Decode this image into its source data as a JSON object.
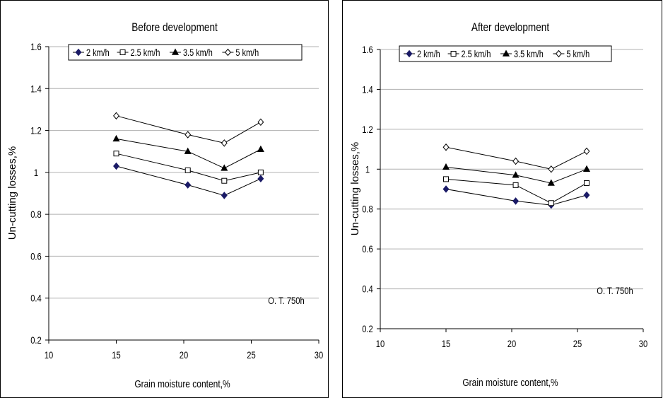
{
  "chart_data": [
    {
      "type": "line",
      "title": "Before development",
      "xlabel": "Grain moisture content,%",
      "ylabel": "Un-cutting losses,%",
      "annotation": "O. T. 750h",
      "xlim": [
        10,
        30
      ],
      "ylim": [
        0.2,
        1.6
      ],
      "xticks": [
        "10",
        "15",
        "20",
        "25",
        "30"
      ],
      "yticks": [
        "0.2",
        "0.4",
        "0.6",
        "0.8",
        "1",
        "1.2",
        "1.4",
        "1.6"
      ],
      "grid": "horizontal",
      "legend_position": "top",
      "x": [
        15,
        20.3,
        23,
        25.7
      ],
      "series": [
        {
          "name": "2 km/h",
          "marker": "filled-diamond",
          "values": [
            1.03,
            0.94,
            0.89,
            0.97
          ]
        },
        {
          "name": "2.5 km/h",
          "marker": "open-square",
          "values": [
            1.09,
            1.01,
            0.96,
            1.0
          ]
        },
        {
          "name": "3.5 km/h",
          "marker": "filled-triangle",
          "values": [
            1.16,
            1.1,
            1.02,
            1.11
          ]
        },
        {
          "name": "5 km/h",
          "marker": "open-diamond",
          "values": [
            1.27,
            1.18,
            1.14,
            1.24
          ]
        }
      ]
    },
    {
      "type": "line",
      "title": "After development",
      "xlabel": "Grain moisture content,%",
      "ylabel": "Un-cutting losses,%",
      "annotation": "O. T. 750h",
      "xlim": [
        10,
        30
      ],
      "ylim": [
        0.2,
        1.6
      ],
      "xticks": [
        "10",
        "15",
        "20",
        "25",
        "30"
      ],
      "yticks": [
        "0.2",
        "0.4",
        "0.6",
        "0.8",
        "1",
        "1.2",
        "1.4",
        "1.6"
      ],
      "grid": "horizontal",
      "legend_position": "top",
      "x": [
        15,
        20.3,
        23,
        25.7
      ],
      "series": [
        {
          "name": "2 km/h",
          "marker": "filled-diamond",
          "values": [
            0.9,
            0.84,
            0.82,
            0.87
          ]
        },
        {
          "name": "2.5 km/h",
          "marker": "open-square",
          "values": [
            0.95,
            0.92,
            0.83,
            0.93
          ]
        },
        {
          "name": "3.5 km/h",
          "marker": "filled-triangle",
          "values": [
            1.01,
            0.97,
            0.93,
            1.0
          ]
        },
        {
          "name": "5 km/h",
          "marker": "open-diamond",
          "values": [
            1.11,
            1.04,
            1.0,
            1.09
          ]
        }
      ]
    }
  ],
  "colors": {
    "line": "#000000",
    "filled_diamond": "#1a1a66",
    "grid": "#b0b0b0",
    "frame": "#000000"
  }
}
